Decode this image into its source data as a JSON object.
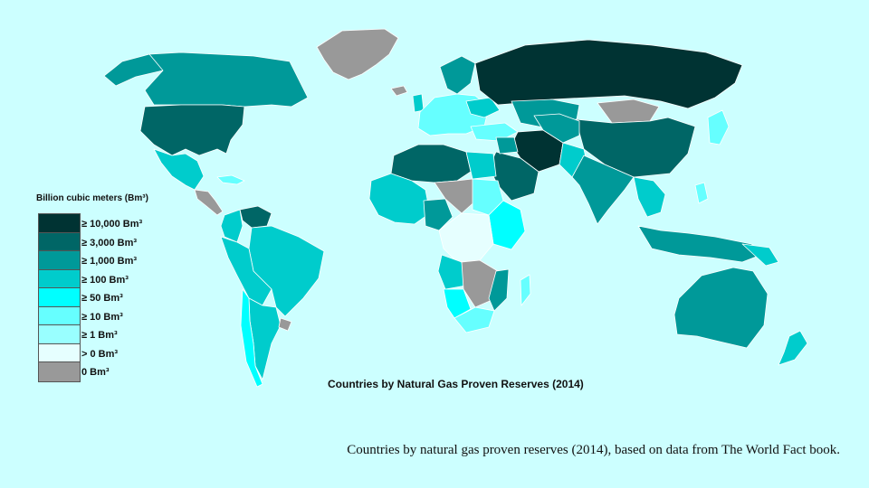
{
  "map_title": "Countries by Natural Gas Proven Reserves (2014)",
  "caption": "Countries by natural gas proven reserves (2014), based on data from The World Fact book.",
  "legend": {
    "title": "Billion cubic meters (Bm³)",
    "items": [
      {
        "label": "≥ 10,000 Bm³",
        "color": "#003333"
      },
      {
        "label": "≥ 3,000 Bm³",
        "color": "#006666"
      },
      {
        "label": "≥ 1,000 Bm³",
        "color": "#009999"
      },
      {
        "label": "≥ 100 Bm³",
        "color": "#00cccc"
      },
      {
        "label": "≥ 50 Bm³",
        "color": "#00ffff"
      },
      {
        "label": "≥ 10 Bm³",
        "color": "#66ffff"
      },
      {
        "label": "≥ 1 Bm³",
        "color": "#99ffff"
      },
      {
        "label": "> 0 Bm³",
        "color": "#e6ffff"
      },
      {
        "label": "0 Bm³",
        "color": "#999999"
      }
    ]
  },
  "colors": {
    "background": "#ccffff",
    "border": "#ffffff"
  }
}
